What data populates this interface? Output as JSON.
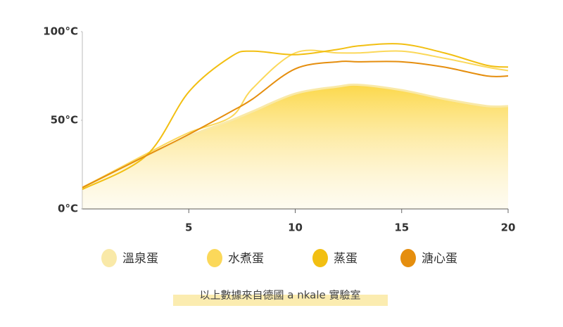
{
  "chart_data": {
    "type": "line",
    "x": [
      0,
      3,
      5,
      7,
      8,
      10,
      12,
      13,
      15,
      17,
      19,
      20
    ],
    "series": [
      {
        "name": "溫泉蛋",
        "color": "#f9e9a8",
        "area": true,
        "values": [
          12,
          30,
          41,
          50,
          55,
          65,
          69,
          70,
          67,
          62,
          58,
          58
        ]
      },
      {
        "name": "水煮蛋",
        "color": "#fbd85a",
        "values": [
          12,
          31,
          43,
          52,
          68,
          88,
          88,
          88,
          89,
          85,
          80,
          78
        ]
      },
      {
        "name": "蒸蛋",
        "color": "#f2bf12",
        "values": [
          11,
          30,
          66,
          86,
          89,
          87,
          90,
          92,
          93,
          88,
          81,
          80
        ]
      },
      {
        "name": "溏心蛋",
        "color": "#e58e0e",
        "values": [
          12,
          30,
          42,
          55,
          62,
          79,
          83,
          83,
          83,
          80,
          75,
          75
        ]
      }
    ],
    "xlim": [
      0,
      20
    ],
    "xticks": [
      5,
      10,
      15,
      20
    ],
    "ylim": [
      0,
      100
    ],
    "yticks": [
      {
        "value": 0,
        "label": "0°C"
      },
      {
        "value": 50,
        "label": "50°C"
      },
      {
        "value": 100,
        "label": "100°C"
      }
    ],
    "note": "以上數據來自德國 a nkale 實驗室"
  }
}
